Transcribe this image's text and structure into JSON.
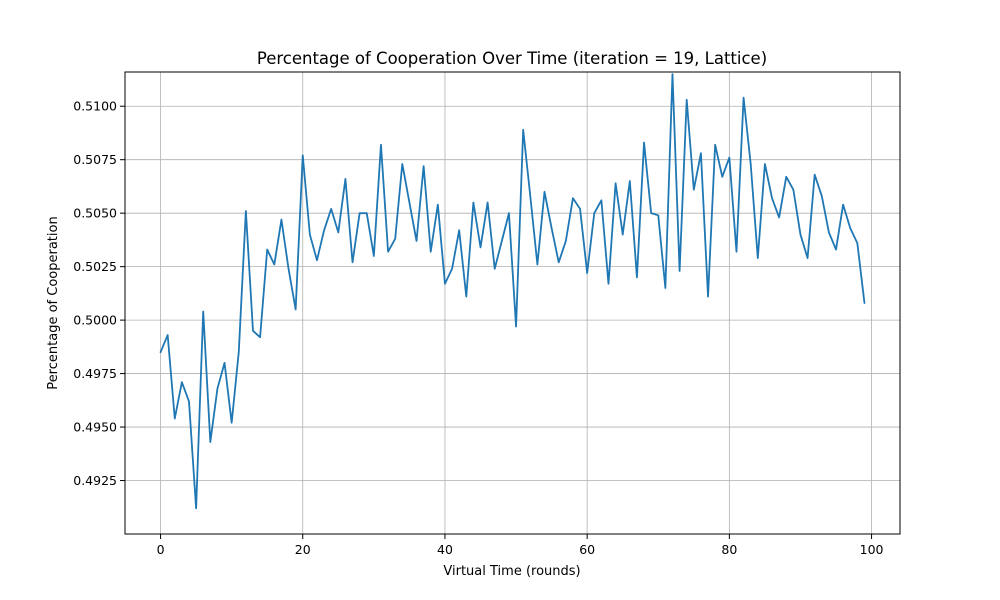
{
  "chart_data": {
    "type": "line",
    "title": "Percentage of Cooperation Over Time (iteration = 19, Lattice)",
    "xlabel": "Virtual Time (rounds)",
    "ylabel": "Percentage of Cooperation",
    "xlim": [
      -5,
      104
    ],
    "ylim": [
      0.49,
      0.5116
    ],
    "xticks": [
      0,
      20,
      40,
      60,
      80,
      100
    ],
    "xtick_labels": [
      "0",
      "20",
      "40",
      "60",
      "80",
      "100"
    ],
    "yticks": [
      0.4925,
      0.495,
      0.4975,
      0.5,
      0.5025,
      0.505,
      0.5075,
      0.51
    ],
    "ytick_labels": [
      "0.4925",
      "0.4950",
      "0.4975",
      "0.5000",
      "0.5025",
      "0.5050",
      "0.5075",
      "0.5100"
    ],
    "grid": true,
    "color": "#1f77b4",
    "series": [
      {
        "x": [
          0,
          1,
          2,
          3,
          4,
          5,
          6,
          7,
          8,
          9,
          10,
          11,
          12,
          13,
          14,
          15,
          16,
          17,
          18,
          19,
          20,
          21,
          22,
          23,
          24,
          25,
          26,
          27,
          28,
          29,
          30,
          31,
          32,
          33,
          34,
          35,
          36,
          37,
          38,
          39,
          40,
          41,
          42,
          43,
          44,
          45,
          46,
          47,
          48,
          49,
          50,
          51,
          52,
          53,
          54,
          55,
          56,
          57,
          58,
          59,
          60,
          61,
          62,
          63,
          64,
          65,
          66,
          67,
          68,
          69,
          70,
          71,
          72,
          73,
          74,
          75,
          76,
          77,
          78,
          79,
          80,
          81,
          82,
          83,
          84,
          85,
          86,
          87,
          88,
          89,
          90,
          91,
          92,
          93,
          94,
          95,
          96,
          97,
          98,
          99
        ],
        "values": [
          0.4985,
          0.4993,
          0.4954,
          0.4971,
          0.4962,
          0.4912,
          0.5004,
          0.4943,
          0.4968,
          0.498,
          0.4952,
          0.4985,
          0.5051,
          0.4995,
          0.4992,
          0.5033,
          0.5026,
          0.5047,
          0.5024,
          0.5005,
          0.5077,
          0.504,
          0.5028,
          0.5042,
          0.5052,
          0.5041,
          0.5066,
          0.5027,
          0.505,
          0.505,
          0.503,
          0.5082,
          0.5032,
          0.5038,
          0.5073,
          0.5055,
          0.5037,
          0.5072,
          0.5032,
          0.5054,
          0.5017,
          0.5024,
          0.5042,
          0.5011,
          0.5055,
          0.5034,
          0.5055,
          0.5024,
          0.5037,
          0.505,
          0.4997,
          0.5089,
          0.5058,
          0.5026,
          0.506,
          0.5043,
          0.5027,
          0.5037,
          0.5057,
          0.5052,
          0.5022,
          0.505,
          0.5056,
          0.5017,
          0.5064,
          0.504,
          0.5065,
          0.502,
          0.5083,
          0.505,
          0.5049,
          0.5015,
          0.5115,
          0.5023,
          0.5103,
          0.5061,
          0.5078,
          0.5011,
          0.5082,
          0.5067,
          0.5076,
          0.5032,
          0.5104,
          0.5073,
          0.5029,
          0.5073,
          0.5057,
          0.5048,
          0.5067,
          0.5061,
          0.504,
          0.5029,
          0.5068,
          0.5058,
          0.5041,
          0.5033,
          0.5054,
          0.5043,
          0.5036,
          0.5008
        ]
      }
    ]
  }
}
